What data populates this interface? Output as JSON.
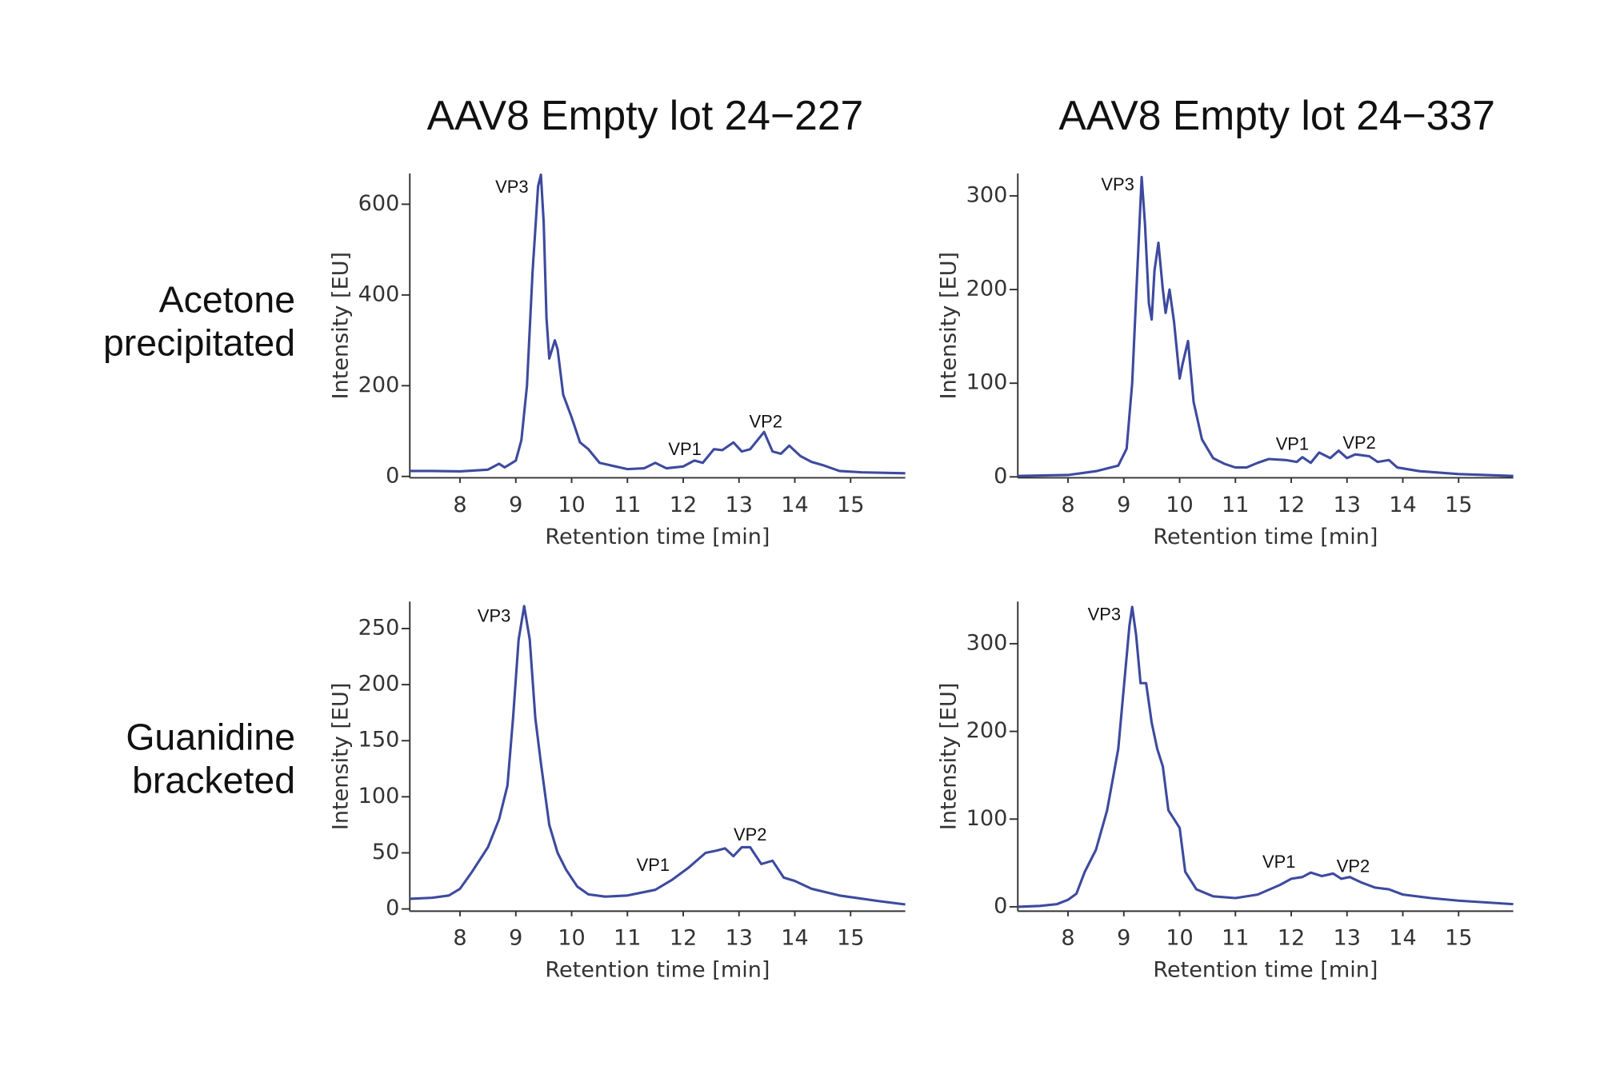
{
  "column_titles": [
    "AAV8 Empty lot 24−227",
    "AAV8 Empty lot 24−337"
  ],
  "row_labels": [
    [
      "Acetone",
      "precipitated"
    ],
    [
      "Guanidine",
      "bracketed"
    ]
  ],
  "chart_data": [
    {
      "type": "line",
      "xlabel": "Retention time [min]",
      "ylabel": "Intensity [EU]",
      "color": "#3d4a9e",
      "xlim": [
        7.1,
        15.98
      ],
      "ylim": [
        -3,
        668
      ],
      "xticks": [
        8,
        9,
        10,
        11,
        12,
        13,
        14,
        15
      ],
      "yticks": [
        0,
        200,
        400,
        600
      ],
      "x": [
        7.1,
        7.5,
        8,
        8.5,
        8.7,
        8.8,
        9.0,
        9.1,
        9.2,
        9.3,
        9.4,
        9.45,
        9.5,
        9.55,
        9.6,
        9.7,
        9.75,
        9.85,
        10.0,
        10.15,
        10.3,
        10.5,
        11.0,
        11.3,
        11.5,
        11.7,
        12.0,
        12.2,
        12.35,
        12.55,
        12.7,
        12.9,
        13.05,
        13.2,
        13.45,
        13.6,
        13.75,
        13.9,
        14.1,
        14.3,
        14.5,
        14.8,
        15.2,
        15.98
      ],
      "values": [
        12,
        12,
        11,
        15,
        28,
        20,
        35,
        80,
        200,
        450,
        640,
        665,
        560,
        350,
        260,
        300,
        280,
        180,
        130,
        75,
        60,
        30,
        16,
        18,
        30,
        18,
        22,
        35,
        30,
        60,
        58,
        75,
        55,
        60,
        98,
        55,
        50,
        68,
        45,
        32,
        25,
        12,
        9,
        7
      ],
      "annotations": [
        {
          "text": "VP3",
          "x": 8.93,
          "y": 636
        },
        {
          "text": "VP1",
          "x": 12.03,
          "y": 57
        },
        {
          "text": "VP2",
          "x": 13.48,
          "y": 118
        }
      ]
    },
    {
      "type": "line",
      "xlabel": "Retention time [min]",
      "ylabel": "Intensity [EU]",
      "color": "#3d4a9e",
      "xlim": [
        7.1,
        15.98
      ],
      "ylim": [
        -1,
        324
      ],
      "xticks": [
        8,
        9,
        10,
        11,
        12,
        13,
        14,
        15
      ],
      "yticks": [
        0,
        100,
        200,
        300
      ],
      "x": [
        7.1,
        8,
        8.5,
        8.7,
        8.9,
        9.05,
        9.15,
        9.25,
        9.32,
        9.38,
        9.45,
        9.5,
        9.55,
        9.62,
        9.7,
        9.75,
        9.82,
        9.9,
        10.0,
        10.05,
        10.15,
        10.25,
        10.4,
        10.6,
        10.8,
        11.0,
        11.2,
        11.4,
        11.6,
        11.9,
        12.1,
        12.2,
        12.35,
        12.5,
        12.7,
        12.85,
        13.0,
        13.15,
        13.4,
        13.55,
        13.75,
        13.9,
        14.3,
        15.0,
        15.98
      ],
      "values": [
        1,
        2,
        6,
        9,
        12,
        30,
        100,
        230,
        320,
        270,
        185,
        168,
        220,
        250,
        200,
        175,
        200,
        165,
        105,
        120,
        145,
        80,
        40,
        20,
        14,
        10,
        10,
        15,
        19,
        18,
        16,
        21,
        15,
        26,
        20,
        28,
        20,
        24,
        22,
        16,
        18,
        10,
        6,
        3,
        1
      ],
      "annotations": [
        {
          "text": "VP3",
          "x": 8.89,
          "y": 311
        },
        {
          "text": "VP1",
          "x": 12.02,
          "y": 34
        },
        {
          "text": "VP2",
          "x": 13.22,
          "y": 35
        }
      ]
    },
    {
      "type": "line",
      "xlabel": "Retention time [min]",
      "ylabel": "Intensity [EU]",
      "color": "#3d4a9e",
      "xlim": [
        7.1,
        15.98
      ],
      "ylim": [
        -2,
        274
      ],
      "xticks": [
        8,
        9,
        10,
        11,
        12,
        13,
        14,
        15
      ],
      "yticks": [
        0,
        50,
        100,
        150,
        200,
        250
      ],
      "x": [
        7.1,
        7.5,
        7.8,
        8.0,
        8.2,
        8.5,
        8.7,
        8.85,
        8.95,
        9.05,
        9.15,
        9.25,
        9.35,
        9.45,
        9.6,
        9.75,
        9.9,
        10.1,
        10.3,
        10.6,
        11.0,
        11.5,
        11.8,
        12.1,
        12.4,
        12.6,
        12.75,
        12.9,
        13.05,
        13.2,
        13.4,
        13.6,
        13.8,
        14.0,
        14.3,
        14.8,
        15.5,
        15.98
      ],
      "values": [
        9,
        10,
        12,
        18,
        32,
        55,
        80,
        110,
        170,
        240,
        270,
        240,
        170,
        130,
        75,
        50,
        35,
        20,
        13,
        11,
        12,
        17,
        26,
        37,
        50,
        52,
        54,
        47,
        55,
        55,
        40,
        43,
        28,
        25,
        18,
        12,
        7,
        4
      ],
      "annotations": [
        {
          "text": "VP3",
          "x": 8.61,
          "y": 260
        },
        {
          "text": "VP1",
          "x": 11.46,
          "y": 38
        },
        {
          "text": "VP2",
          "x": 13.2,
          "y": 65
        }
      ]
    },
    {
      "type": "line",
      "xlabel": "Retention time [min]",
      "ylabel": "Intensity [EU]",
      "color": "#3d4a9e",
      "xlim": [
        7.1,
        15.98
      ],
      "ylim": [
        -5,
        348
      ],
      "xticks": [
        8,
        9,
        10,
        11,
        12,
        13,
        14,
        15
      ],
      "yticks": [
        0,
        100,
        200,
        300
      ],
      "x": [
        7.1,
        7.5,
        7.8,
        8.0,
        8.15,
        8.3,
        8.5,
        8.7,
        8.9,
        9.0,
        9.1,
        9.15,
        9.22,
        9.3,
        9.4,
        9.5,
        9.6,
        9.7,
        9.8,
        9.9,
        10.0,
        10.1,
        10.3,
        10.6,
        11.0,
        11.4,
        11.8,
        12.0,
        12.2,
        12.35,
        12.55,
        12.75,
        12.9,
        13.05,
        13.25,
        13.5,
        13.75,
        14.0,
        14.5,
        15.0,
        15.98
      ],
      "values": [
        0,
        1,
        3,
        8,
        15,
        40,
        65,
        110,
        180,
        250,
        320,
        342,
        310,
        255,
        255,
        210,
        180,
        160,
        110,
        100,
        90,
        40,
        20,
        12,
        10,
        14,
        25,
        32,
        34,
        39,
        35,
        38,
        32,
        34,
        28,
        22,
        20,
        14,
        10,
        7,
        3
      ],
      "annotations": [
        {
          "text": "VP3",
          "x": 8.65,
          "y": 332
        },
        {
          "text": "VP1",
          "x": 11.78,
          "y": 50
        },
        {
          "text": "VP2",
          "x": 13.11,
          "y": 45
        }
      ]
    }
  ]
}
